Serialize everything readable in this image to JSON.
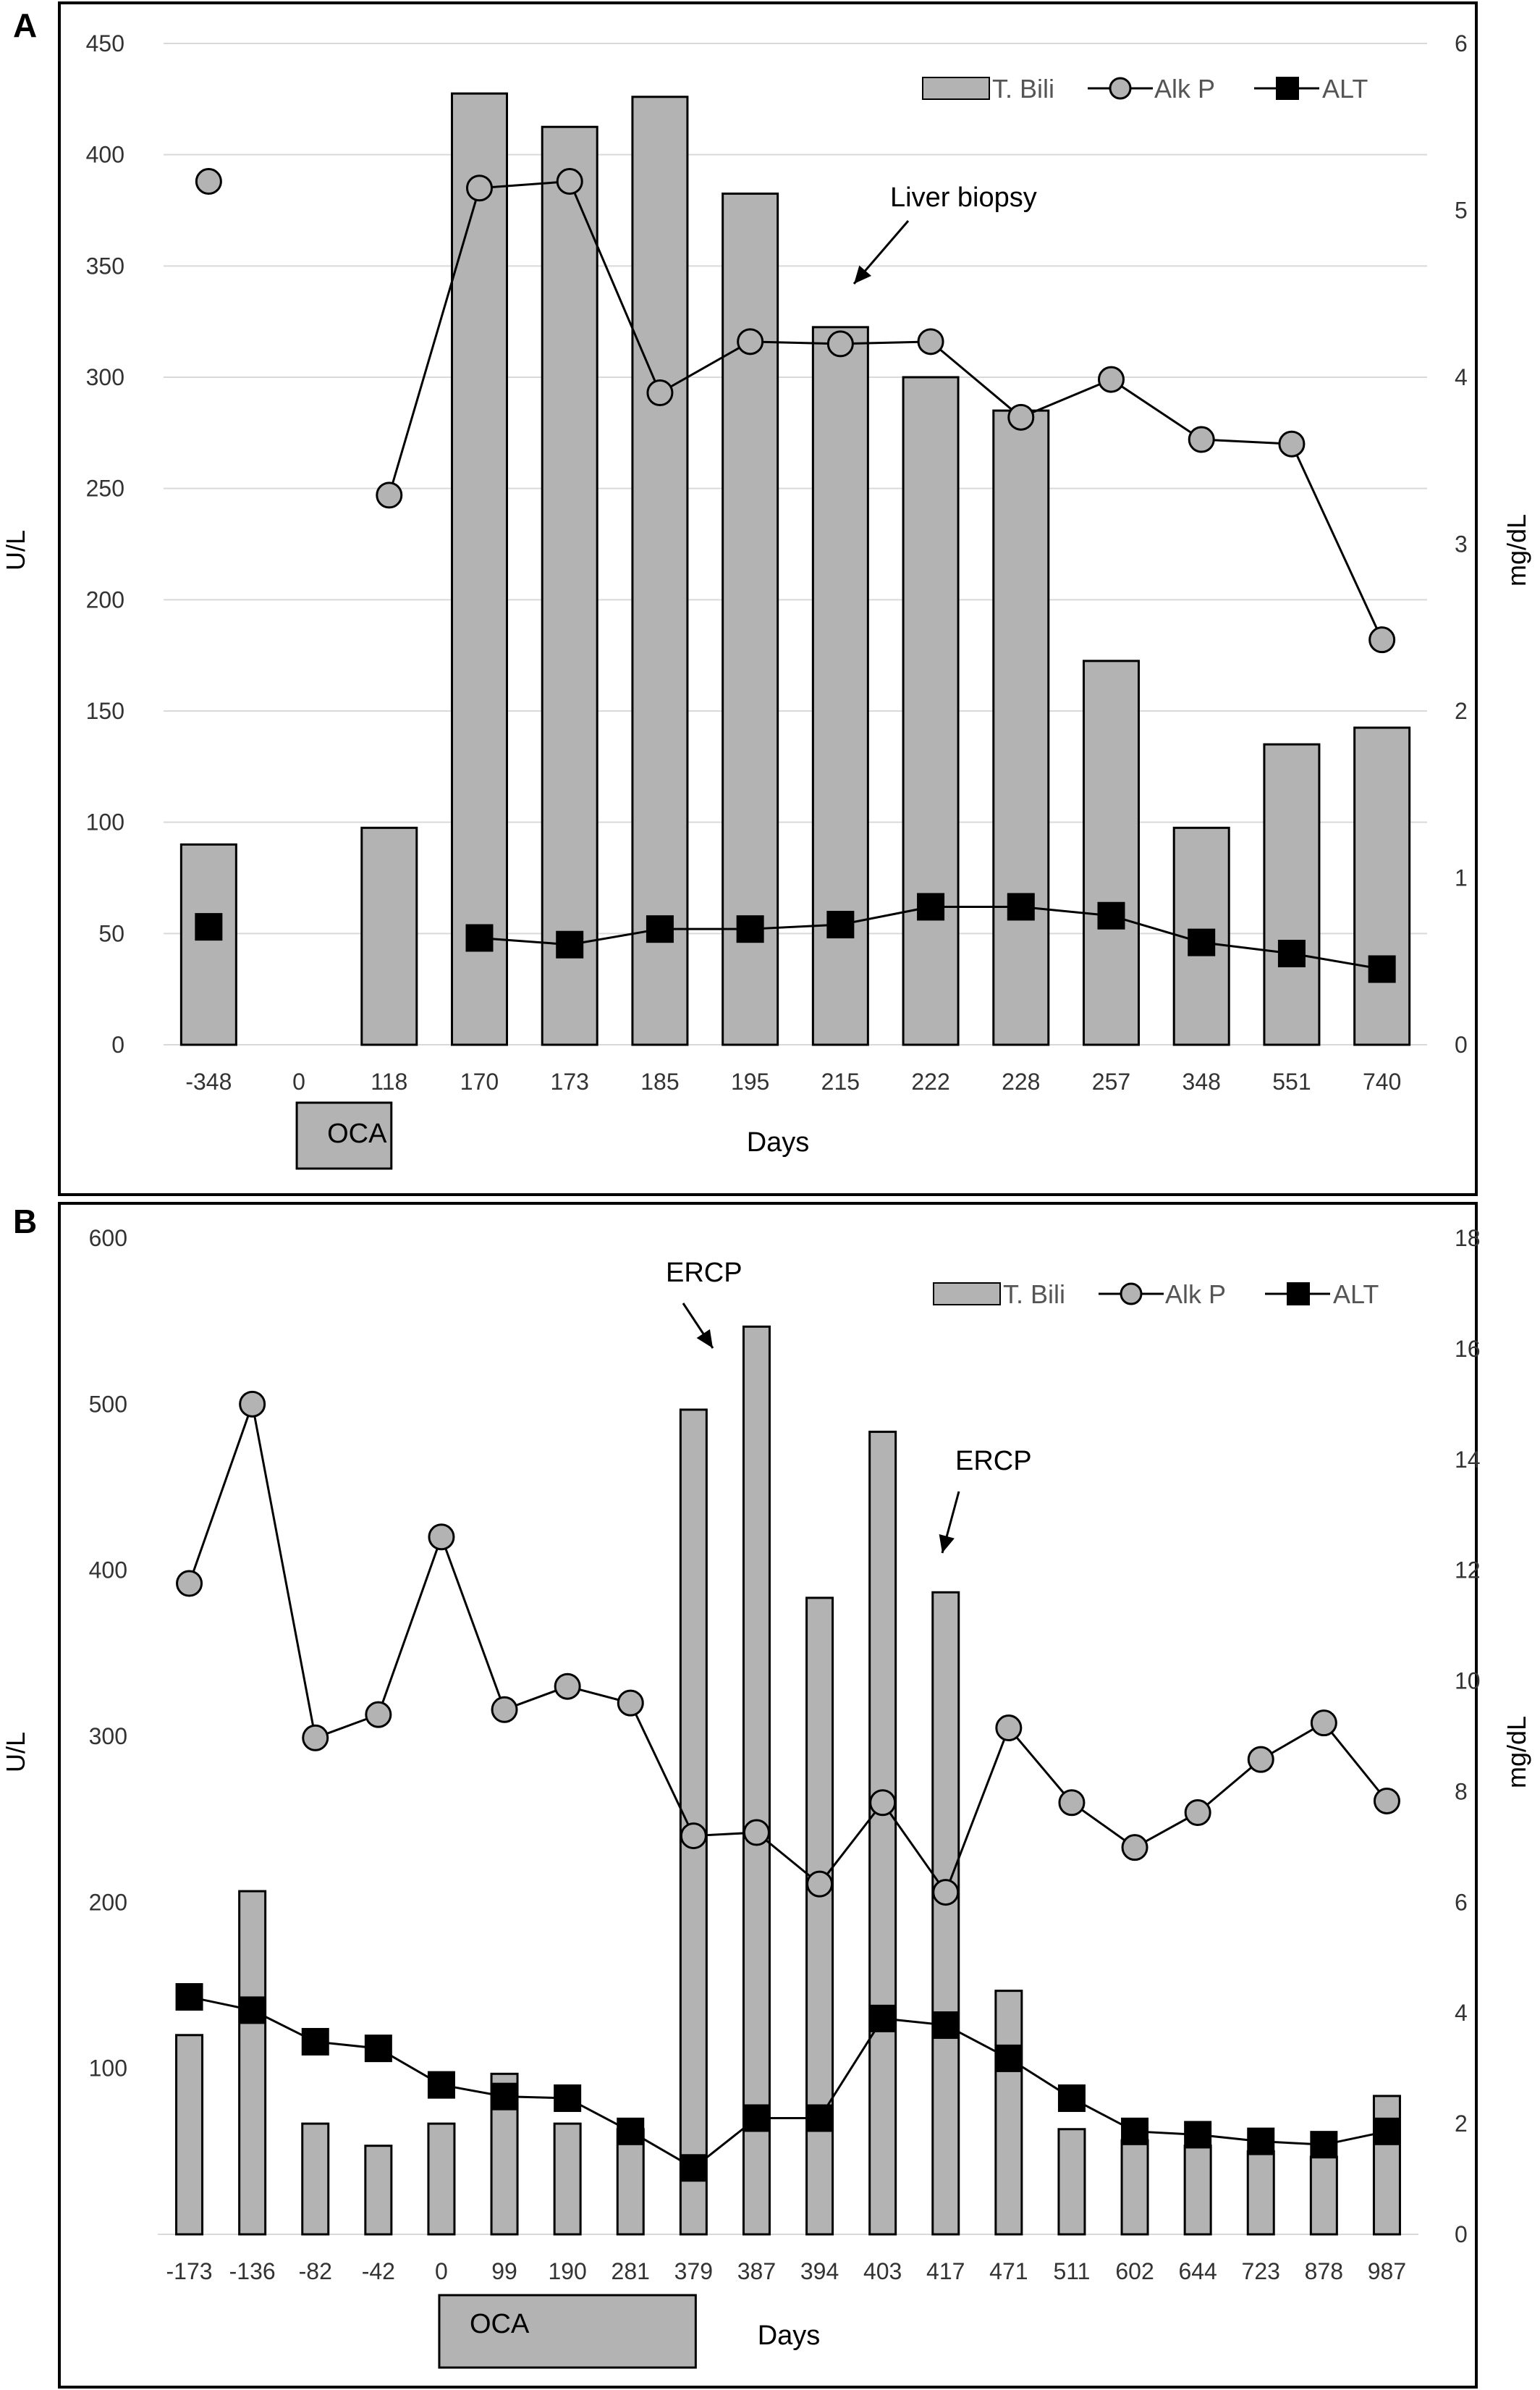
{
  "panels": [
    {
      "letter": "A"
    },
    {
      "letter": "B"
    }
  ],
  "chart_data": [
    {
      "type": "bar",
      "panel": "A",
      "categories": [
        "-348",
        "0",
        "118",
        "170",
        "173",
        "185",
        "195",
        "215",
        "222",
        "228",
        "257",
        "348",
        "551",
        "740"
      ],
      "series": [
        {
          "name": "T. Bili",
          "type": "bar",
          "axis": "right",
          "values": [
            1.2,
            null,
            1.3,
            5.7,
            5.5,
            5.68,
            5.1,
            4.3,
            4.0,
            3.8,
            2.3,
            1.3,
            1.8,
            1.9
          ]
        },
        {
          "name": "Alk P",
          "type": "line",
          "axis": "left",
          "marker": "circle",
          "values": [
            388,
            null,
            247,
            385,
            388,
            293,
            316,
            315,
            316,
            282,
            299,
            272,
            270,
            182
          ],
          "connected_from_index": 2
        },
        {
          "name": "ALT",
          "type": "line",
          "axis": "left",
          "marker": "square",
          "values": [
            53,
            null,
            null,
            48,
            45,
            52,
            52,
            54,
            62,
            62,
            58,
            46,
            41,
            34
          ],
          "connected_from_index": 3
        }
      ],
      "y_left": {
        "label": "U/L",
        "min": 0,
        "max": 450,
        "ticks": [
          "0",
          "50",
          "100",
          "150",
          "200",
          "250",
          "300",
          "350",
          "400",
          "450"
        ]
      },
      "y_right": {
        "label": "mg/dL",
        "min": 0,
        "max": 6,
        "ticks": [
          "0",
          "1",
          "2",
          "3",
          "4",
          "5",
          "6"
        ]
      },
      "xlabel": "Days",
      "grid": true,
      "legend_placement": "top-right",
      "annotations": [
        {
          "text": "Liver biopsy",
          "target_category": "215"
        }
      ],
      "bracket": {
        "text": "OCA",
        "from_category": "0",
        "to_category": "118"
      },
      "colors": {
        "bar_fill": "#b3b3b3",
        "marker_gray": "#b3b3b3",
        "marker_black": "#000000"
      }
    },
    {
      "type": "bar",
      "panel": "B",
      "categories": [
        "-173",
        "-136",
        "-82",
        "-42",
        "0",
        "99",
        "190",
        "281",
        "379",
        "387",
        "394",
        "403",
        "417",
        "471",
        "511",
        "602",
        "644",
        "723",
        "878",
        "987"
      ],
      "series": [
        {
          "name": "T. Bili",
          "type": "bar",
          "axis": "right",
          "values": [
            3.6,
            6.2,
            2.0,
            1.6,
            2.0,
            2.9,
            2.0,
            1.9,
            14.9,
            16.4,
            11.5,
            14.5,
            11.6,
            4.4,
            1.9,
            1.7,
            1.6,
            1.5,
            1.4,
            2.5
          ]
        },
        {
          "name": "Alk P",
          "type": "line",
          "axis": "left",
          "marker": "circle",
          "values": [
            392,
            500,
            299,
            313,
            420,
            316,
            330,
            320,
            240,
            242,
            211,
            260,
            206,
            305,
            260,
            233,
            254,
            286,
            308,
            261
          ]
        },
        {
          "name": "ALT",
          "type": "line",
          "axis": "left",
          "marker": "square",
          "values": [
            143,
            135,
            116,
            112,
            90,
            83,
            82,
            62,
            40,
            70,
            70,
            130,
            126,
            106,
            82,
            62,
            60,
            56,
            54,
            62
          ]
        }
      ],
      "y_left": {
        "label": "U/L",
        "min": 0,
        "max": 600,
        "ticks": [
          "100",
          "200",
          "300",
          "400",
          "500",
          "600"
        ]
      },
      "y_right": {
        "label": "mg/dL",
        "min": 0,
        "max": 18,
        "ticks": [
          "0",
          "2",
          "4",
          "6",
          "8",
          "10",
          "12",
          "14",
          "16",
          "18"
        ]
      },
      "xlabel": "Days",
      "grid": false,
      "legend_placement": "top-right",
      "annotations": [
        {
          "text": "ERCP",
          "target_category": "379"
        },
        {
          "text": "ERCP",
          "target_category": "417"
        }
      ],
      "bracket": {
        "text": "OCA",
        "from_category": "0",
        "to_category": "379"
      },
      "colors": {
        "bar_fill": "#b3b3b3",
        "marker_gray": "#b3b3b3",
        "marker_black": "#000000"
      }
    }
  ]
}
